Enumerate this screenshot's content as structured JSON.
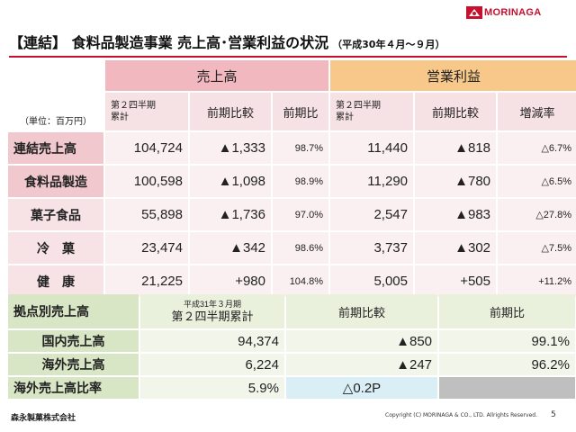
{
  "logo": {
    "text": "MORINAGA",
    "color": "#c8102e"
  },
  "title": "【連結】 食料品製造事業 売上高･営業利益の状況",
  "subtitle": "（平成30年４月～９月）",
  "table1": {
    "unit": "（単位：百万円）",
    "group_sales": "売上高",
    "group_profit": "営業利益",
    "sales_cols": [
      "第２四半期\n累計",
      "前期比較",
      "前期比"
    ],
    "profit_cols": [
      "第２四半期\n累計",
      "前期比較",
      "増減率"
    ],
    "rows": [
      {
        "label": "連結売上高",
        "s1": "104,724",
        "s2": "▲1,333",
        "s3": "98.7%",
        "p1": "11,440",
        "p2": "▲818",
        "p3": "△6.7%"
      },
      {
        "label": "食料品製造",
        "s1": "100,598",
        "s2": "▲1,098",
        "s3": "98.9%",
        "p1": "11,290",
        "p2": "▲780",
        "p3": "△6.5%"
      },
      {
        "label": "菓子食品",
        "s1": "55,898",
        "s2": "▲1,736",
        "s3": "97.0%",
        "p1": "2,547",
        "p2": "▲983",
        "p3": "△27.8%"
      },
      {
        "label": "冷　菓",
        "s1": "23,474",
        "s2": "▲342",
        "s3": "98.6%",
        "p1": "3,737",
        "p2": "▲302",
        "p3": "△7.5%"
      },
      {
        "label": "健　康",
        "s1": "21,225",
        "s2": "+980",
        "s3": "104.8%",
        "p1": "5,005",
        "p2": "+505",
        "p3": "+11.2%"
      }
    ]
  },
  "table2": {
    "header_label": "拠点別売上高",
    "col1_line1": "平成31年３月期",
    "col1_line2": "第２四半期累計",
    "col2": "前期比較",
    "col3": "前期比",
    "rows": [
      {
        "label": "国内売上高",
        "v1": "94,374",
        "v2": "▲850",
        "v3": "99.1%"
      },
      {
        "label": "海外売上高",
        "v1": "6,224",
        "v2": "▲247",
        "v3": "96.2%"
      }
    ],
    "ratio": {
      "label": "海外売上高比率",
      "v1": "5.9%",
      "v2": "△0.2P"
    }
  },
  "footer": {
    "company": "森永製菓株式会社",
    "copyright": "Copyright (C) MORINAGA & CO., LTD. Allrights Reserved.",
    "page": "5"
  }
}
